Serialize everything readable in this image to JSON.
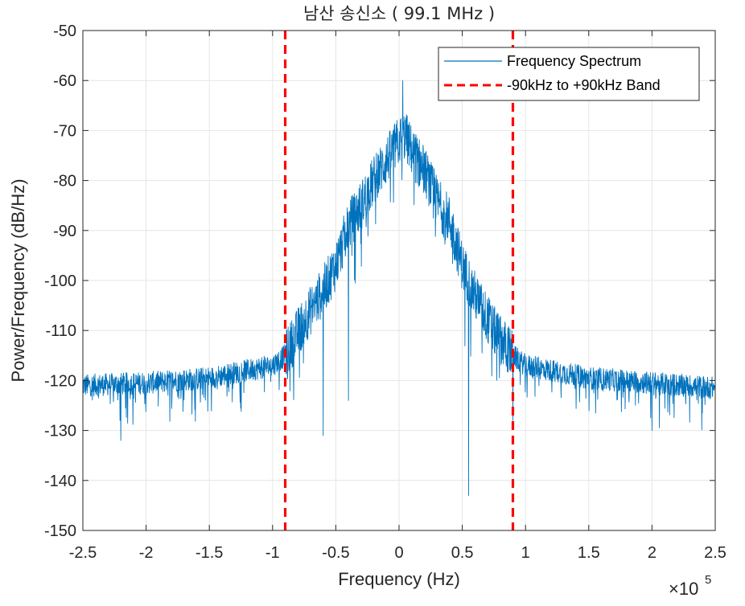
{
  "chart_data": {
    "type": "line",
    "title": "남산 송신소 ( 99.1 MHz )",
    "xlabel": "Frequency (Hz)",
    "ylabel": "Power/Frequency (dB/Hz)",
    "x_scale_label": "×10",
    "x_scale_exponent": "5",
    "xlim": [
      -250000,
      250000
    ],
    "ylim": [
      -150,
      -50
    ],
    "x_ticks": [
      -250000,
      -200000,
      -150000,
      -100000,
      -50000,
      0,
      50000,
      100000,
      150000,
      200000,
      250000
    ],
    "x_tick_labels": [
      "-2.5",
      "-2",
      "-1.5",
      "-1",
      "-0.5",
      "0",
      "0.5",
      "1",
      "1.5",
      "2",
      "2.5"
    ],
    "y_ticks": [
      -50,
      -60,
      -70,
      -80,
      -90,
      -100,
      -110,
      -120,
      -130,
      -140,
      -150
    ],
    "y_tick_labels": [
      "-50",
      "-60",
      "-70",
      "-80",
      "-90",
      "-100",
      "-110",
      "-120",
      "-130",
      "-140",
      "-150"
    ],
    "grid": true,
    "legend_position": "top-right",
    "series": [
      {
        "name": "Frequency Spectrum",
        "color": "#0072BD",
        "style": "solid",
        "envelope_x": [
          -250000,
          -200000,
          -150000,
          -100000,
          -90000,
          -75000,
          -60000,
          -50000,
          -40000,
          -30000,
          -20000,
          -10000,
          0,
          5000,
          10000,
          20000,
          30000,
          40000,
          50000,
          60000,
          75000,
          90000,
          100000,
          150000,
          200000,
          250000
        ],
        "envelope_y": [
          -121,
          -120.5,
          -119.5,
          -117,
          -115,
          -108,
          -102,
          -97,
          -89,
          -85,
          -80,
          -76,
          -72,
          -71,
          -74,
          -78,
          -84,
          -88,
          -97,
          -103,
          -110,
          -115,
          -117,
          -119.5,
          -120.5,
          -121.5
        ],
        "min_marks": [
          {
            "x": -220000,
            "y": -132
          },
          {
            "x": -60000,
            "y": -131
          },
          {
            "x": -40000,
            "y": -124
          },
          {
            "x": 55000,
            "y": -143
          },
          {
            "x": 90000,
            "y": -128
          },
          {
            "x": 200000,
            "y": -130
          }
        ],
        "peak": {
          "x": 3000,
          "y": -60
        }
      },
      {
        "name": "-90kHz to +90kHz Band",
        "color": "#FF0000",
        "style": "dashed",
        "x": [
          -90000,
          90000
        ]
      }
    ]
  }
}
